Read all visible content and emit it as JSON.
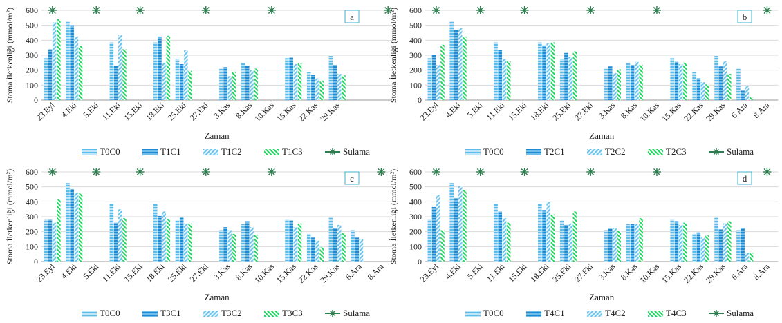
{
  "shared": {
    "ylabel": "Stoma İletkenliği (mmol/m²)",
    "xlabel": "Zaman",
    "categories": [
      "23.Eyl",
      "4.Eki",
      "5.Eki",
      "11.Eki",
      "15.Eki",
      "18.Eki",
      "25.Eki",
      "27.Eki",
      "3.Kas",
      "8.Kas",
      "10.Kas",
      "15.Kas",
      "22.Kas",
      "29.Kas",
      "6.Ara",
      "8.Ara"
    ],
    "ylim": [
      0,
      600
    ],
    "yticks": [
      0,
      100,
      200,
      300,
      400,
      500,
      600
    ],
    "colors": {
      "T0C0": "#7ecbf0",
      "C1": "#1f8ad4",
      "C2": "#9fd8f5",
      "C3": "#22dd66",
      "Sulama": "#2e7d4f"
    },
    "sulama_label": "Sulama"
  },
  "chart_data": [
    {
      "type": "bar",
      "panel": "a",
      "categories": [
        "23.Eyl",
        "4.Eki",
        "5.Eki",
        "11.Eki",
        "15.Eki",
        "18.Eki",
        "25.Eki",
        "27.Eki",
        "3.Kas",
        "8.Kas",
        "10.Kas",
        "15.Kas",
        "22.Kas",
        "29.Kas"
      ],
      "ylabel": "Stoma İletkenliği (mmol/m²)",
      "xlabel": "Zaman",
      "ylim": [
        0,
        600
      ],
      "series": [
        {
          "name": "T0C0",
          "values": [
            280,
            525,
            null,
            385,
            null,
            385,
            275,
            null,
            210,
            250,
            null,
            280,
            185,
            295
          ]
        },
        {
          "name": "T1C1",
          "values": [
            340,
            500,
            null,
            230,
            null,
            425,
            240,
            null,
            220,
            230,
            null,
            285,
            170,
            235
          ]
        },
        {
          "name": "T1C2",
          "values": [
            520,
            425,
            null,
            435,
            null,
            250,
            335,
            null,
            160,
            200,
            null,
            240,
            145,
            175
          ]
        },
        {
          "name": "T1C3",
          "values": [
            540,
            360,
            null,
            340,
            null,
            430,
            195,
            null,
            190,
            210,
            null,
            245,
            130,
            165
          ]
        }
      ],
      "sulama": [
        "23.Eyl",
        "5.Eki",
        "15.Eki",
        "27.Eki",
        "10.Kas",
        "end"
      ]
    },
    {
      "type": "bar",
      "panel": "b",
      "categories": [
        "23.Eyl",
        "4.Eki",
        "5.Eki",
        "11.Eki",
        "15.Eki",
        "18.Eki",
        "25.Eki",
        "27.Eki",
        "3.Kas",
        "8.Kas",
        "10.Kas",
        "15.Kas",
        "22.Kas",
        "29.Kas",
        "6.Ara",
        "8.Ara"
      ],
      "ylabel": "Stoma İletkenliği (mmol/m²)",
      "xlabel": "Zaman",
      "ylim": [
        0,
        600
      ],
      "series": [
        {
          "name": "T0C0",
          "values": [
            280,
            525,
            null,
            385,
            null,
            385,
            275,
            null,
            210,
            250,
            null,
            280,
            185,
            295,
            210,
            null
          ]
        },
        {
          "name": "T2C1",
          "values": [
            300,
            470,
            null,
            335,
            null,
            365,
            315,
            null,
            225,
            235,
            null,
            255,
            145,
            225,
            65,
            null
          ]
        },
        {
          "name": "T2C2",
          "values": [
            235,
            480,
            null,
            275,
            null,
            380,
            290,
            null,
            180,
            255,
            null,
            240,
            120,
            260,
            95,
            null
          ]
        },
        {
          "name": "T2C3",
          "values": [
            370,
            425,
            null,
            260,
            null,
            385,
            325,
            null,
            205,
            235,
            null,
            250,
            105,
            175,
            20,
            null
          ]
        }
      ],
      "sulama": [
        "23.Eyl",
        "5.Eki",
        "15.Eki",
        "27.Eki",
        "10.Kas",
        "8.Ara"
      ]
    },
    {
      "type": "bar",
      "panel": "c",
      "categories": [
        "23.Eyl",
        "4.Eki",
        "5.Eki",
        "11.Eki",
        "15.Eki",
        "18.Eki",
        "25.Eki",
        "27.Eki",
        "3.Kas",
        "8.Kas",
        "10.Kas",
        "15.Kas",
        "22.Kas",
        "29.Kas",
        "6.Ara",
        "8.Ara"
      ],
      "ylabel": "Stoma İletkenliği (mmol/m²)",
      "xlabel": "Zaman",
      "ylim": [
        0,
        600
      ],
      "series": [
        {
          "name": "T0C0",
          "values": [
            280,
            525,
            null,
            385,
            null,
            385,
            275,
            null,
            210,
            250,
            null,
            280,
            185,
            295,
            210,
            null
          ]
        },
        {
          "name": "T3C1",
          "values": [
            280,
            485,
            null,
            260,
            null,
            305,
            295,
            null,
            230,
            270,
            null,
            275,
            160,
            225,
            160,
            null
          ]
        },
        {
          "name": "T3C2",
          "values": [
            260,
            460,
            null,
            350,
            null,
            335,
            255,
            null,
            210,
            230,
            null,
            230,
            140,
            245,
            150,
            null
          ]
        },
        {
          "name": "T3C3",
          "values": [
            415,
            455,
            null,
            290,
            null,
            285,
            255,
            null,
            185,
            180,
            null,
            255,
            95,
            190,
            null,
            null
          ]
        }
      ],
      "sulama": [
        "23.Eyl",
        "5.Eki",
        "15.Eki",
        "27.Eki",
        "10.Kas",
        "8.Ara"
      ]
    },
    {
      "type": "bar",
      "panel": "d",
      "categories": [
        "23.Eyl",
        "4.Eki",
        "5.Eki",
        "11.Eki",
        "15.Eki",
        "18.Eki",
        "25.Eki",
        "27.Eki",
        "3.Kas",
        "8.Kas",
        "10.Kas",
        "15.Kas",
        "22.Kas",
        "29.Kas",
        "6.Ara",
        "8.Ara"
      ],
      "ylabel": "Stoma İletkenliği (mmol/m²)",
      "xlabel": "Zaman",
      "ylim": [
        0,
        600
      ],
      "series": [
        {
          "name": "T0C0",
          "values": [
            280,
            525,
            null,
            385,
            null,
            385,
            275,
            null,
            210,
            250,
            null,
            280,
            185,
            295,
            210,
            null
          ]
        },
        {
          "name": "T4C1",
          "values": [
            365,
            425,
            null,
            335,
            null,
            345,
            245,
            null,
            220,
            250,
            null,
            270,
            195,
            215,
            225,
            null
          ]
        },
        {
          "name": "T4C2",
          "values": [
            445,
            505,
            null,
            290,
            null,
            400,
            255,
            null,
            225,
            250,
            null,
            245,
            160,
            255,
            60,
            null
          ]
        },
        {
          "name": "T4C3",
          "values": [
            210,
            480,
            null,
            260,
            null,
            315,
            335,
            null,
            205,
            290,
            null,
            260,
            175,
            270,
            60,
            null
          ]
        }
      ],
      "sulama": [
        "23.Eyl",
        "5.Eki",
        "15.Eki",
        "27.Eki",
        "10.Kas",
        "8.Ara"
      ]
    }
  ]
}
